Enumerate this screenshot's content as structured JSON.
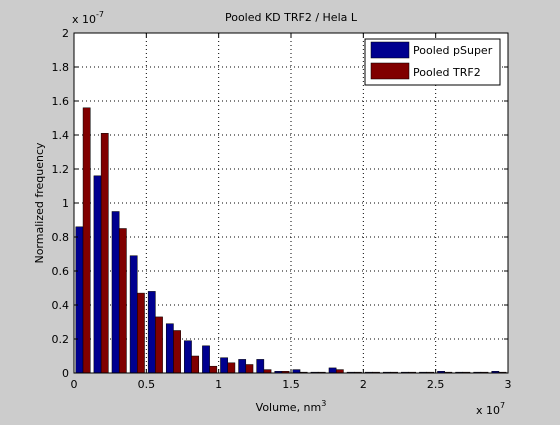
{
  "chart_data": {
    "type": "bar",
    "title": "Pooled KD TRF2 / Hela L",
    "xlabel": "Volume, nm",
    "xlabel_superscript": "3",
    "ylabel": "Normalized frequency",
    "x_multiplier": "x 10",
    "x_multiplier_exp": "7",
    "y_multiplier": "x 10",
    "y_multiplier_exp": "-7",
    "xlim": [
      0,
      3
    ],
    "ylim": [
      0,
      2
    ],
    "grid": true,
    "legend_position": "top-right",
    "x_ticks": [
      {
        "value": 0,
        "label": "0"
      },
      {
        "value": 0.5,
        "label": "0.5"
      },
      {
        "value": 1,
        "label": "1"
      },
      {
        "value": 1.5,
        "label": "1.5"
      },
      {
        "value": 2,
        "label": "2"
      },
      {
        "value": 2.5,
        "label": "2.5"
      },
      {
        "value": 3,
        "label": "3"
      }
    ],
    "y_ticks": [
      {
        "value": 0,
        "label": "0"
      },
      {
        "value": 0.2,
        "label": "0.2"
      },
      {
        "value": 0.4,
        "label": "0.4"
      },
      {
        "value": 0.6,
        "label": "0.6"
      },
      {
        "value": 0.8,
        "label": "0.8"
      },
      {
        "value": 1,
        "label": "1"
      },
      {
        "value": 1.2,
        "label": "1.2"
      },
      {
        "value": 1.4,
        "label": "1.4"
      },
      {
        "value": 1.6,
        "label": "1.6"
      },
      {
        "value": 1.8,
        "label": "1.8"
      },
      {
        "value": 2,
        "label": "2"
      }
    ],
    "bin_width": 0.125,
    "x": [
      0.0625,
      0.1875,
      0.3125,
      0.4375,
      0.5625,
      0.6875,
      0.8125,
      0.9375,
      1.0625,
      1.1875,
      1.3125,
      1.4375,
      1.5625,
      1.6875,
      1.8125,
      1.9375,
      2.0625,
      2.1875,
      2.3125,
      2.4375,
      2.5625,
      2.6875,
      2.8125,
      2.9375
    ],
    "series": [
      {
        "name": "Pooled pSuper",
        "color": "#00008f",
        "values": [
          0.86,
          1.16,
          0.95,
          0.69,
          0.48,
          0.29,
          0.19,
          0.16,
          0.09,
          0.08,
          0.08,
          0.01,
          0.02,
          0.005,
          0.03,
          0.005,
          0.005,
          0.005,
          0.005,
          0.005,
          0.01,
          0.005,
          0.005,
          0.01
        ]
      },
      {
        "name": "Pooled TRF2",
        "color": "#800000",
        "values": [
          1.56,
          1.41,
          0.85,
          0.47,
          0.33,
          0.25,
          0.1,
          0.04,
          0.06,
          0.05,
          0.02,
          0.01,
          0.005,
          0.005,
          0.02,
          0.005,
          0.005,
          0.005,
          0.005,
          0.005,
          0.005,
          0.005,
          0.005,
          0.005
        ]
      }
    ]
  }
}
